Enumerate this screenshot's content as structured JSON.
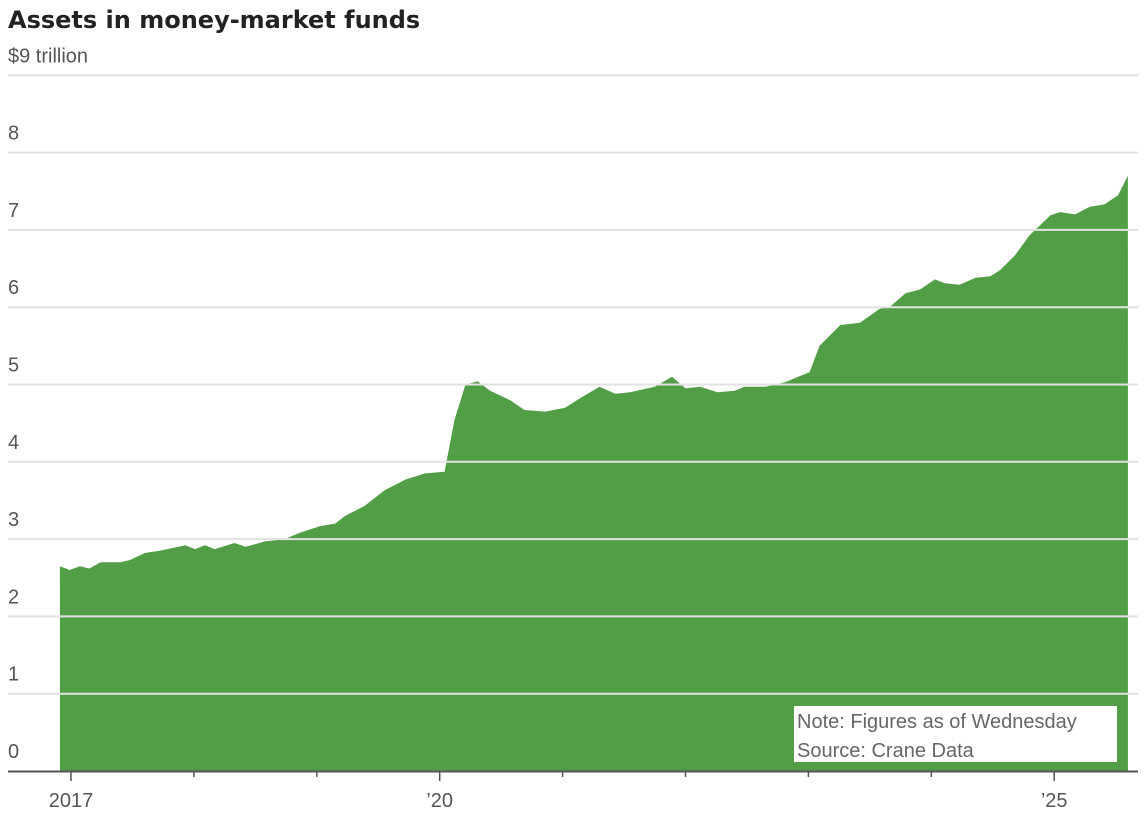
{
  "chart_data": {
    "type": "area",
    "title": "Assets in money-market funds",
    "unit_label": "$9 trillion",
    "ylim": [
      0,
      9
    ],
    "yticks": [
      0,
      1,
      2,
      3,
      4,
      5,
      6,
      7,
      8,
      9
    ],
    "ytick_labels": [
      "0",
      "1",
      "2",
      "3",
      "4",
      "5",
      "6",
      "7",
      "8",
      "$9 trillion"
    ],
    "xlim": [
      2016.91,
      2025.6
    ],
    "xticks": [
      2017,
      2018,
      2019,
      2020,
      2021,
      2022,
      2023,
      2024,
      2025
    ],
    "xtick_labels": [
      {
        "x": 2017,
        "label": "2017"
      },
      {
        "x": 2020,
        "label": "’20"
      },
      {
        "x": 2025,
        "label": "’25"
      }
    ],
    "grid": true,
    "color": "#529e47",
    "series": [
      {
        "name": "Assets ($ trillion)",
        "x": [
          2016.91,
          2016.99,
          2017.07,
          2017.15,
          2017.24,
          2017.4,
          2017.48,
          2017.6,
          2017.72,
          2017.93,
          2018.01,
          2018.09,
          2018.17,
          2018.33,
          2018.42,
          2018.58,
          2018.74,
          2018.86,
          2019.03,
          2019.15,
          2019.23,
          2019.39,
          2019.55,
          2019.72,
          2019.88,
          2020.04,
          2020.12,
          2020.21,
          2020.31,
          2020.41,
          2020.57,
          2020.69,
          2020.86,
          2021.02,
          2021.14,
          2021.3,
          2021.43,
          2021.55,
          2021.75,
          2021.89,
          2022.0,
          2022.12,
          2022.26,
          2022.4,
          2022.48,
          2022.65,
          2022.81,
          2023.01,
          2023.09,
          2023.26,
          2023.42,
          2023.58,
          2023.66,
          2023.79,
          2023.91,
          2024.03,
          2024.11,
          2024.23,
          2024.36,
          2024.48,
          2024.56,
          2024.68,
          2024.8,
          2024.97,
          2025.05,
          2025.17,
          2025.29,
          2025.41,
          2025.52,
          2025.6
        ],
        "values": [
          2.65,
          2.6,
          2.65,
          2.62,
          2.7,
          2.7,
          2.73,
          2.82,
          2.85,
          2.92,
          2.87,
          2.92,
          2.87,
          2.95,
          2.9,
          2.97,
          3.0,
          3.08,
          3.17,
          3.2,
          3.3,
          3.43,
          3.63,
          3.77,
          3.85,
          3.87,
          4.54,
          5.0,
          5.04,
          4.92,
          4.8,
          4.67,
          4.65,
          4.7,
          4.82,
          4.97,
          4.88,
          4.9,
          4.97,
          5.1,
          4.95,
          4.97,
          4.9,
          4.92,
          4.97,
          4.97,
          5.03,
          5.16,
          5.5,
          5.77,
          5.8,
          5.98,
          6.0,
          6.18,
          6.23,
          6.36,
          6.31,
          6.29,
          6.38,
          6.4,
          6.48,
          6.67,
          6.93,
          7.19,
          7.23,
          7.2,
          7.3,
          7.33,
          7.45,
          7.7
        ]
      }
    ],
    "annotations": [
      "Note: Figures as of Wednesday",
      "Source: Crane Data"
    ]
  }
}
